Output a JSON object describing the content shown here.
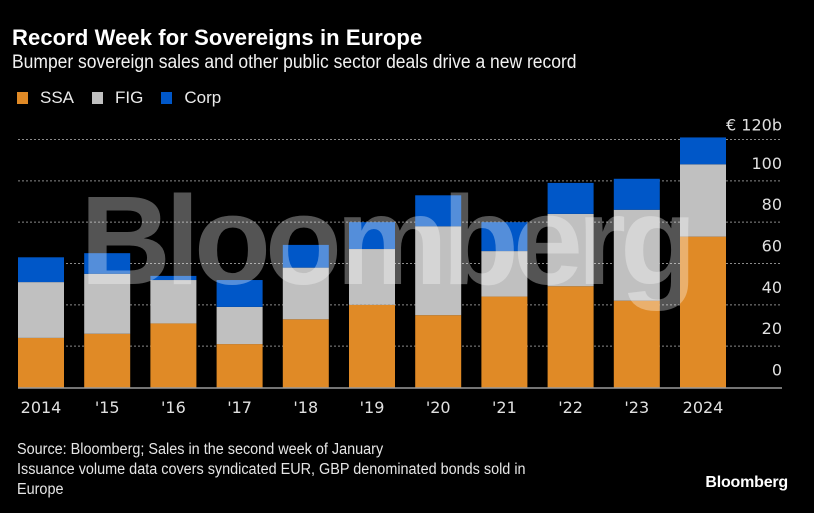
{
  "header": {
    "title": "Record Week for Sovereigns in Europe",
    "subtitle": "Bumper sovereign sales and other public sector deals drive a new record"
  },
  "legend": [
    {
      "label": "SSA",
      "color": "#E08A26"
    },
    {
      "label": "FIG",
      "color": "#C0C0C0"
    },
    {
      "label": "Corp",
      "color": "#0057C8"
    }
  ],
  "footer": {
    "source": "Source: Bloomberg; Sales in the second week of January",
    "note_line1": "Issuance volume data covers syndicated EUR, GBP denominated bonds sold in",
    "note_line2": "Europe",
    "brand": "Bloomberg"
  },
  "watermark": "Bloomberg",
  "chart_data": {
    "type": "bar",
    "stacked": true,
    "title": "Record Week for Sovereigns in Europe",
    "subtitle": "Bumper sovereign sales and other public sector deals drive a new record",
    "categories": [
      "2014",
      "'15",
      "'16",
      "'17",
      "'18",
      "'19",
      "'20",
      "'21",
      "'22",
      "'23",
      "2024"
    ],
    "series": [
      {
        "name": "SSA",
        "color": "#E08A26",
        "values": [
          24,
          26,
          31,
          21,
          33,
          40,
          35,
          44,
          49,
          42,
          73
        ]
      },
      {
        "name": "FIG",
        "color": "#C0C0C0",
        "values": [
          27,
          29,
          21,
          18,
          25,
          27,
          43,
          22,
          35,
          44,
          35
        ]
      },
      {
        "name": "Corp",
        "color": "#0057C8",
        "values": [
          12,
          10,
          2,
          13,
          11,
          13,
          15,
          14,
          15,
          15,
          13
        ]
      }
    ],
    "xlabel": "",
    "ylabel": "",
    "ylim": [
      0,
      120
    ],
    "yticks": [
      0,
      20,
      40,
      60,
      80,
      100,
      120
    ],
    "ytick_labels": [
      "0",
      "20",
      "40",
      "60",
      "80",
      "100",
      "€ 120b"
    ],
    "y_axis_position": "right",
    "grid": true,
    "legend_position": "top-left"
  }
}
